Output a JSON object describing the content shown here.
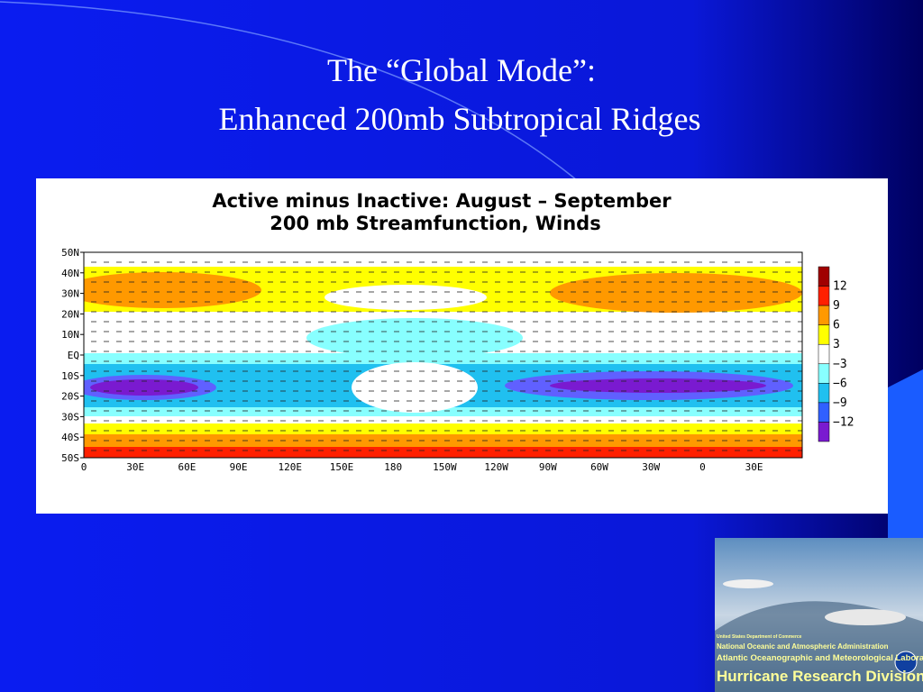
{
  "slide": {
    "title_lines": [
      "The “Global Mode”:",
      "Enhanced 200mb Subtropical Ridges"
    ]
  },
  "figure": {
    "title_lines": [
      "Active minus Inactive: August – September",
      "200 mb Streamfunction, Winds"
    ],
    "latitude_labels": [
      "50N",
      "40N",
      "30N",
      "20N",
      "10N",
      "EQ",
      "10S",
      "20S",
      "30S",
      "40S",
      "50S"
    ],
    "longitude_labels": [
      "0",
      "30E",
      "60E",
      "90E",
      "120E",
      "150E",
      "180",
      "150W",
      "120W",
      "90W",
      "60W",
      "30W",
      "0",
      "30E"
    ],
    "legend_labels": [
      "12",
      "9",
      "6",
      "3",
      "−3",
      "−6",
      "−9",
      "−12"
    ]
  },
  "logo": {
    "lines": [
      "United States Department of Commerce",
      "National Oceanic and Atmospheric Administration",
      "Atlantic Oceanographic and Meteorological Laboratory",
      "Hurricane Research Division"
    ]
  }
}
